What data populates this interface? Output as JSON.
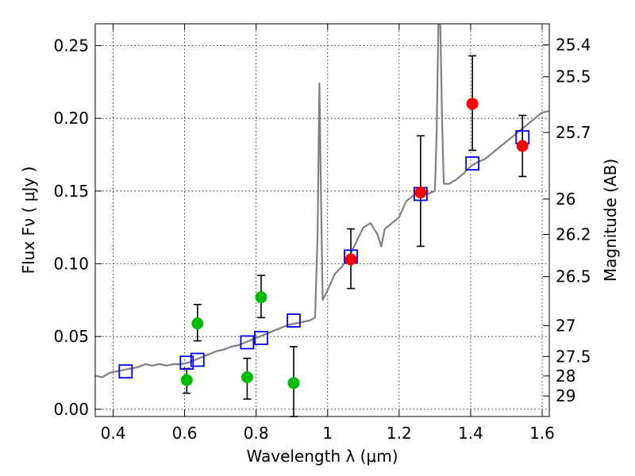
{
  "chart_data": {
    "type": "scatter",
    "xlabel": "Wavelength  λ (μm)",
    "ylabel": "Flux  Fν  ( μJy )",
    "ylabel_right": "Magnitude (AB)",
    "xlim": [
      0.35,
      1.62
    ],
    "ylim": [
      -0.005,
      0.265
    ],
    "grid": true,
    "x_ticks": [
      {
        "value": 0.4,
        "label": "0.4"
      },
      {
        "value": 0.6,
        "label": "0.6"
      },
      {
        "value": 0.8,
        "label": "0.8"
      },
      {
        "value": 1.0,
        "label": "1"
      },
      {
        "value": 1.2,
        "label": "1.2"
      },
      {
        "value": 1.4,
        "label": "1.4"
      },
      {
        "value": 1.6,
        "label": "1.6"
      }
    ],
    "y_ticks": [
      {
        "value": 0.0,
        "label": "0.00"
      },
      {
        "value": 0.05,
        "label": "0.05"
      },
      {
        "value": 0.1,
        "label": "0.10"
      },
      {
        "value": 0.15,
        "label": "0.15"
      },
      {
        "value": 0.2,
        "label": "0.20"
      },
      {
        "value": 0.25,
        "label": "0.25"
      }
    ],
    "right_ticks": [
      {
        "flux": 0.2506,
        "label": "25.4"
      },
      {
        "flux": 0.2286,
        "label": "25.5"
      },
      {
        "flux": 0.1903,
        "label": "25.7"
      },
      {
        "flux": 0.1445,
        "label": "26"
      },
      {
        "flux": 0.1202,
        "label": "26.2"
      },
      {
        "flux": 0.0912,
        "label": "26.5"
      },
      {
        "flux": 0.0575,
        "label": "27"
      },
      {
        "flux": 0.0363,
        "label": "27.5"
      },
      {
        "flux": 0.0229,
        "label": "28"
      },
      {
        "flux": 0.0091,
        "label": "29"
      }
    ],
    "colors": {
      "model": "#808080",
      "green": "#00bb00",
      "red": "#ff0000",
      "squares": "#0000ee",
      "errorbar": "#000000"
    },
    "model_spectrum": [
      [
        0.35,
        0.023
      ],
      [
        0.37,
        0.022
      ],
      [
        0.39,
        0.025
      ],
      [
        0.41,
        0.026
      ],
      [
        0.43,
        0.027
      ],
      [
        0.45,
        0.028
      ],
      [
        0.47,
        0.029
      ],
      [
        0.49,
        0.031
      ],
      [
        0.51,
        0.03
      ],
      [
        0.53,
        0.031
      ],
      [
        0.55,
        0.03
      ],
      [
        0.57,
        0.031
      ],
      [
        0.59,
        0.031
      ],
      [
        0.61,
        0.032
      ],
      [
        0.63,
        0.034
      ],
      [
        0.65,
        0.036
      ],
      [
        0.67,
        0.038
      ],
      [
        0.69,
        0.04
      ],
      [
        0.71,
        0.041
      ],
      [
        0.73,
        0.043
      ],
      [
        0.75,
        0.044
      ],
      [
        0.77,
        0.046
      ],
      [
        0.79,
        0.048
      ],
      [
        0.81,
        0.05
      ],
      [
        0.83,
        0.052
      ],
      [
        0.85,
        0.054
      ],
      [
        0.87,
        0.056
      ],
      [
        0.89,
        0.058
      ],
      [
        0.91,
        0.059
      ],
      [
        0.93,
        0.06
      ],
      [
        0.95,
        0.061
      ],
      [
        0.965,
        0.063
      ],
      [
        0.972,
        0.12
      ],
      [
        0.977,
        0.224
      ],
      [
        0.982,
        0.14
      ],
      [
        0.986,
        0.075
      ],
      [
        1.0,
        0.082
      ],
      [
        1.02,
        0.093
      ],
      [
        1.04,
        0.098
      ],
      [
        1.06,
        0.105
      ],
      [
        1.08,
        0.115
      ],
      [
        1.1,
        0.125
      ],
      [
        1.12,
        0.128
      ],
      [
        1.14,
        0.12
      ],
      [
        1.15,
        0.112
      ],
      [
        1.16,
        0.124
      ],
      [
        1.18,
        0.128
      ],
      [
        1.2,
        0.132
      ],
      [
        1.22,
        0.143
      ],
      [
        1.24,
        0.147
      ],
      [
        1.26,
        0.15
      ],
      [
        1.28,
        0.148
      ],
      [
        1.3,
        0.15
      ],
      [
        1.305,
        0.19
      ],
      [
        1.31,
        0.268
      ],
      [
        1.315,
        0.268
      ],
      [
        1.32,
        0.2
      ],
      [
        1.325,
        0.155
      ],
      [
        1.34,
        0.155
      ],
      [
        1.36,
        0.158
      ],
      [
        1.38,
        0.162
      ],
      [
        1.4,
        0.167
      ],
      [
        1.42,
        0.17
      ],
      [
        1.44,
        0.172
      ],
      [
        1.46,
        0.176
      ],
      [
        1.48,
        0.18
      ],
      [
        1.5,
        0.184
      ],
      [
        1.52,
        0.188
      ],
      [
        1.54,
        0.192
      ],
      [
        1.56,
        0.196
      ],
      [
        1.58,
        0.2
      ],
      [
        1.6,
        0.204
      ],
      [
        1.62,
        0.205
      ]
    ],
    "green_points": [
      {
        "x": 0.606,
        "y": 0.02,
        "err_low": 0.011,
        "err_high": 0.028
      },
      {
        "x": 0.636,
        "y": 0.059,
        "err_low": 0.047,
        "err_high": 0.072
      },
      {
        "x": 0.775,
        "y": 0.022,
        "err_low": 0.007,
        "err_high": 0.035
      },
      {
        "x": 0.814,
        "y": 0.077,
        "err_low": 0.063,
        "err_high": 0.092
      },
      {
        "x": 0.905,
        "y": 0.018,
        "err_low": -0.005,
        "err_high": 0.043
      }
    ],
    "red_points": [
      {
        "x": 1.065,
        "y": 0.103,
        "err_low": 0.083,
        "err_high": 0.124
      },
      {
        "x": 1.26,
        "y": 0.149,
        "err_low": 0.112,
        "err_high": 0.188
      },
      {
        "x": 1.405,
        "y": 0.21,
        "err_low": 0.178,
        "err_high": 0.243
      },
      {
        "x": 1.545,
        "y": 0.181,
        "err_low": 0.16,
        "err_high": 0.202
      }
    ],
    "model_squares": [
      {
        "x": 0.435,
        "y": 0.026
      },
      {
        "x": 0.606,
        "y": 0.032
      },
      {
        "x": 0.636,
        "y": 0.034
      },
      {
        "x": 0.775,
        "y": 0.046
      },
      {
        "x": 0.814,
        "y": 0.049
      },
      {
        "x": 0.905,
        "y": 0.061
      },
      {
        "x": 1.065,
        "y": 0.105
      },
      {
        "x": 1.26,
        "y": 0.148
      },
      {
        "x": 1.405,
        "y": 0.169
      },
      {
        "x": 1.545,
        "y": 0.187
      }
    ]
  }
}
